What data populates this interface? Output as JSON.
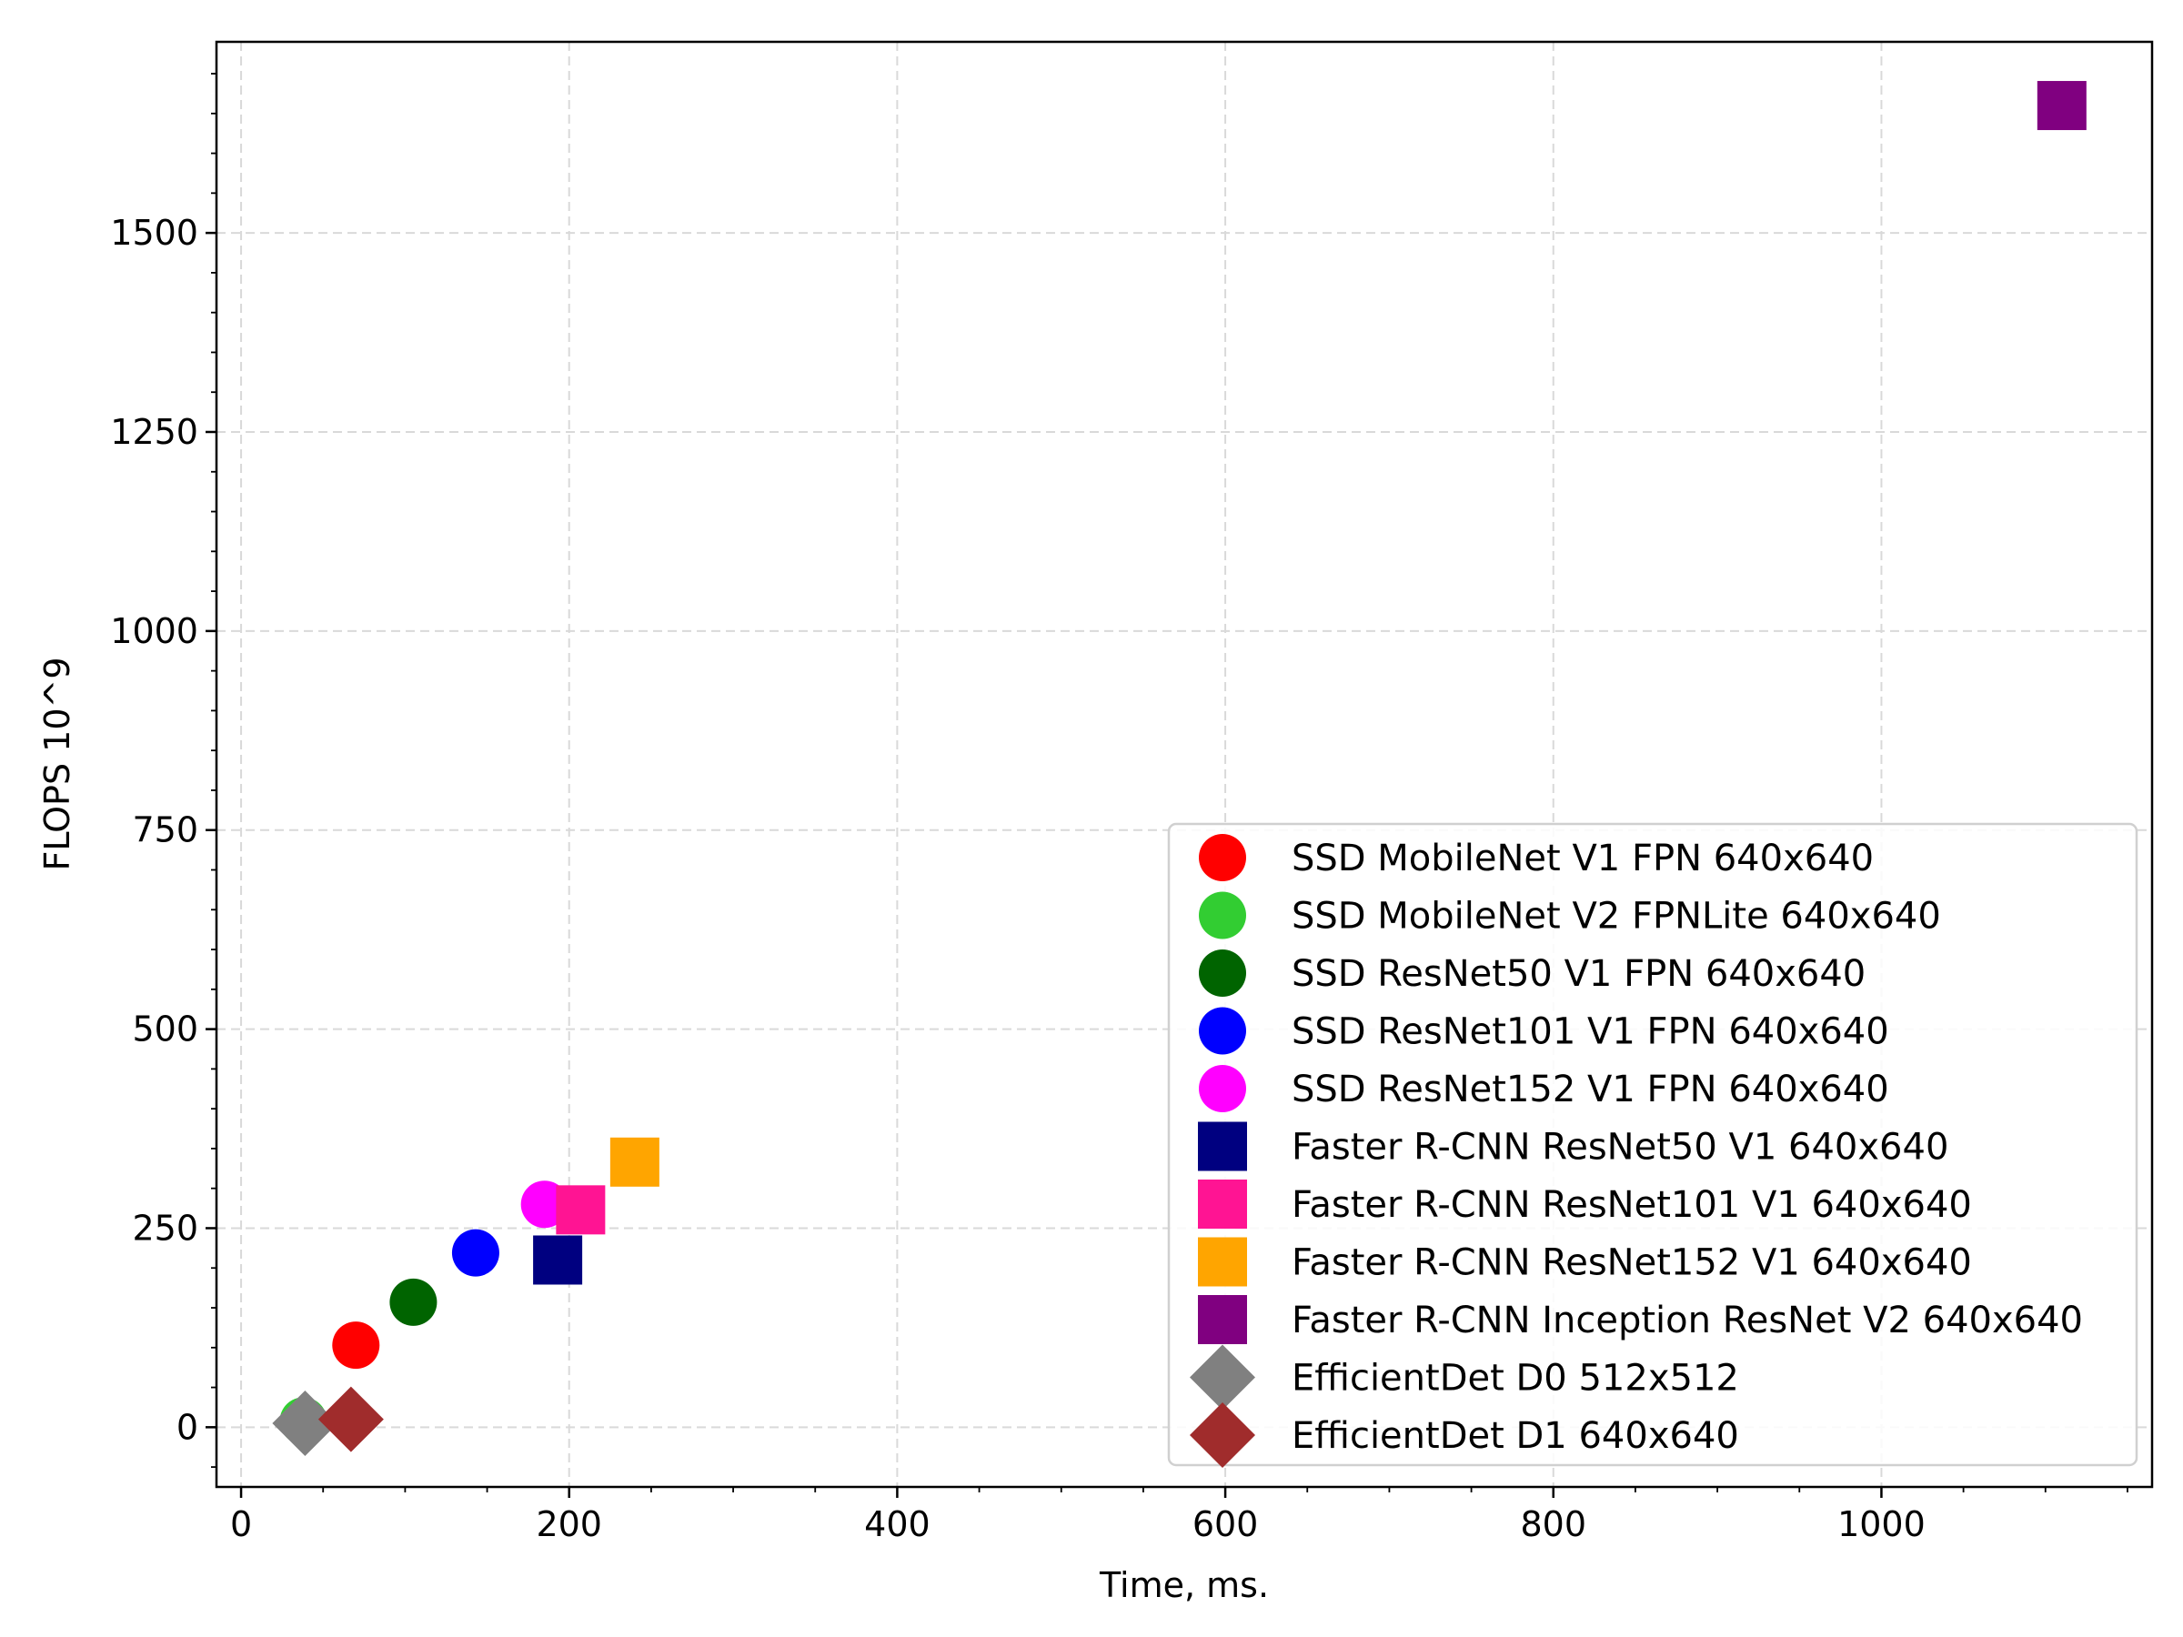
{
  "chart_data": {
    "type": "scatter",
    "title": "",
    "xlabel": "Time, ms.",
    "ylabel": "FLOPS 10^9",
    "xlim": [
      -15,
      1165
    ],
    "ylim": [
      -75,
      1740
    ],
    "xticks": [
      0,
      200,
      400,
      600,
      800,
      1000
    ],
    "yticks": [
      0,
      250,
      500,
      750,
      1000,
      1250,
      1500
    ],
    "grid": true,
    "legend_position": "lower-right",
    "series": [
      {
        "name": "SSD MobileNet V1 FPN 640x640",
        "marker": "circle",
        "color": "#ff0000",
        "x": [
          70
        ],
        "y": [
          103
        ]
      },
      {
        "name": "SSD MobileNet V2 FPNLite 640x640",
        "marker": "circle",
        "color": "#32cd32",
        "x": [
          38
        ],
        "y": [
          8
        ]
      },
      {
        "name": "SSD ResNet50 V1 FPN 640x640",
        "marker": "circle",
        "color": "#006400",
        "x": [
          105
        ],
        "y": [
          157
        ]
      },
      {
        "name": "SSD ResNet101 V1 FPN 640x640",
        "marker": "circle",
        "color": "#0000ff",
        "x": [
          143
        ],
        "y": [
          219
        ]
      },
      {
        "name": "SSD ResNet152 V1 FPN 640x640",
        "marker": "circle",
        "color": "#ff00ff",
        "x": [
          185
        ],
        "y": [
          280
        ]
      },
      {
        "name": "Faster R-CNN ResNet50 V1 640x640",
        "marker": "square",
        "color": "#000080",
        "x": [
          193
        ],
        "y": [
          210
        ]
      },
      {
        "name": "Faster R-CNN ResNet101 V1 640x640",
        "marker": "square",
        "color": "#ff1493",
        "x": [
          207
        ],
        "y": [
          273
        ]
      },
      {
        "name": "Faster R-CNN ResNet152 V1 640x640",
        "marker": "square",
        "color": "#ffa500",
        "x": [
          240
        ],
        "y": [
          333
        ]
      },
      {
        "name": "Faster R-CNN Inception ResNet V2 640x640",
        "marker": "square",
        "color": "#800080",
        "x": [
          1110
        ],
        "y": [
          1660
        ]
      },
      {
        "name": "EfficientDet D0 512x512",
        "marker": "diamond",
        "color": "#808080",
        "x": [
          39
        ],
        "y": [
          5
        ]
      },
      {
        "name": "EfficientDet D1 640x640",
        "marker": "diamond",
        "color": "#a02c2c",
        "x": [
          67
        ],
        "y": [
          10
        ]
      }
    ]
  }
}
